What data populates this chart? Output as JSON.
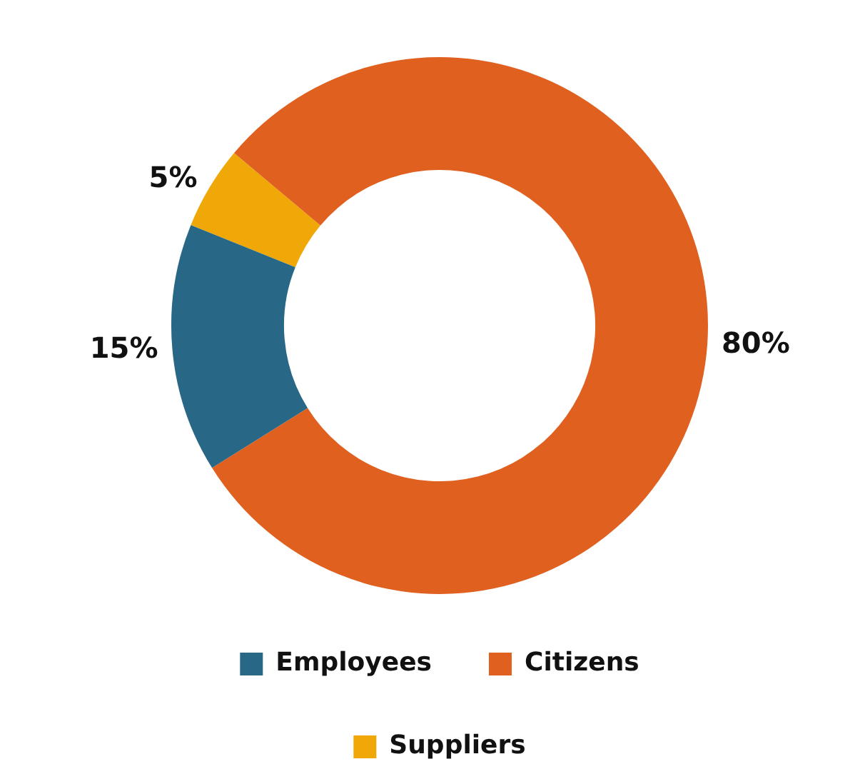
{
  "chart_data": {
    "type": "donut",
    "categories": [
      "Employees",
      "Citizens",
      "Suppliers"
    ],
    "values": [
      15,
      80,
      5
    ],
    "colors": [
      "#286785",
      "#e06020",
      "#f0a808"
    ],
    "value_labels": [
      "15%",
      "80%",
      "5%"
    ],
    "legend": "bottom"
  }
}
